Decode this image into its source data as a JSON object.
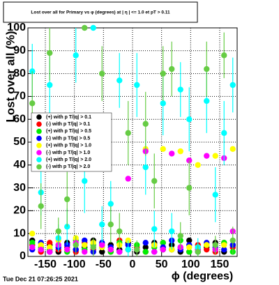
{
  "chart_data": {
    "type": "scatter",
    "title": "Lost over all for Primary vs φ (degrees) at | η | <= 1.0 et pT > 0.11",
    "x_label": "ϕ (degrees)",
    "y_label": "Lost over all (%)",
    "timestamp": "Tue Dec 21 07:26:25 2021",
    "xlim": [
      -180,
      180
    ],
    "xticks": [
      -150,
      -100,
      -50,
      0,
      50,
      100,
      150
    ],
    "ylim": [
      0,
      100
    ],
    "yticks": [
      0,
      10,
      20,
      30,
      40,
      50,
      60,
      70,
      80,
      90,
      100
    ],
    "grid": true,
    "x": [
      -172.5,
      -157.5,
      -142.5,
      -127.5,
      -112.5,
      -97.5,
      -82.5,
      -67.5,
      -52.5,
      -37.5,
      -22.5,
      -7.5,
      7.5,
      22.5,
      37.5,
      52.5,
      67.5,
      82.5,
      97.5,
      112.5,
      127.5,
      142.5,
      157.5,
      172.5
    ],
    "series": [
      {
        "name": "(+) with p T/|q| > 0.1",
        "color": "#000000",
        "values": [
          7,
          3,
          5,
          2,
          6,
          3,
          4,
          7,
          2,
          5,
          3,
          6,
          2,
          4,
          6,
          3,
          5,
          2,
          7,
          3,
          4,
          6,
          2,
          5
        ]
      },
      {
        "name": "(-) with p T/|q| > 0.1",
        "color": "#ff0000",
        "values": [
          5,
          2,
          6,
          3,
          4,
          2,
          6,
          3,
          5,
          2,
          7,
          3,
          4,
          2,
          5,
          6,
          3,
          4,
          2,
          5,
          3,
          2,
          6,
          4
        ]
      },
      {
        "name": "(+) with p T/|q| > 0.5",
        "color": "#00ee00",
        "values": [
          6,
          4,
          3,
          5,
          2,
          7,
          3,
          5,
          4,
          2,
          6,
          3,
          5,
          2,
          4,
          6,
          3,
          7,
          2,
          4,
          5,
          3,
          6,
          2
        ]
      },
      {
        "name": "(-) with p T/|q| > 0.5",
        "color": "#0000ff",
        "values": [
          3,
          6,
          2,
          4,
          5,
          3,
          7,
          2,
          6,
          4,
          2,
          5,
          3,
          6,
          2,
          4,
          7,
          3,
          5,
          2,
          6,
          4,
          3,
          5
        ]
      },
      {
        "name": "(+) with p T/|q| > 1.0",
        "color": "#ffff00",
        "values": [
          10,
          5,
          4,
          7,
          3,
          8,
          5,
          6,
          4,
          3,
          5,
          7,
          3,
          47,
          5,
          47,
          3,
          46,
          4,
          40,
          5,
          44,
          5,
          47
        ]
      },
      {
        "name": "(-) with p T/|q| > 1.0",
        "color": "#ff00ff",
        "values": [
          4,
          3,
          2,
          5,
          3,
          6,
          2,
          4,
          5,
          3,
          2,
          34,
          3,
          46,
          2,
          3,
          45,
          4,
          42,
          3,
          44,
          3,
          43,
          11
        ]
      },
      {
        "name": "(+) with p T/|q| > 2.0",
        "color": "#00ffff",
        "values": [
          81,
          28,
          75,
          8,
          13,
          88,
          33,
          100,
          14,
          23,
          77,
          3,
          75,
          39,
          12,
          67,
          11,
          73,
          60,
          4,
          68,
          27,
          54,
          75
        ],
        "errors": [
          12,
          10,
          14,
          6,
          8,
          12,
          14,
          0,
          8,
          10,
          12,
          4,
          14,
          12,
          8,
          14,
          8,
          12,
          14,
          4,
          14,
          12,
          14,
          12
        ]
      },
      {
        "name": "(-) with p T/|q| > 2.0",
        "color": "#66cc44",
        "values": [
          67,
          22,
          89,
          11,
          25,
          5,
          100,
          4,
          80,
          14,
          11,
          54,
          3,
          58,
          33,
          80,
          82,
          9,
          30,
          2,
          82,
          5,
          88,
          7
        ],
        "errors": [
          14,
          10,
          12,
          6,
          12,
          4,
          0,
          4,
          12,
          8,
          8,
          14,
          4,
          14,
          12,
          12,
          12,
          6,
          12,
          3,
          12,
          4,
          10,
          6
        ]
      }
    ]
  }
}
